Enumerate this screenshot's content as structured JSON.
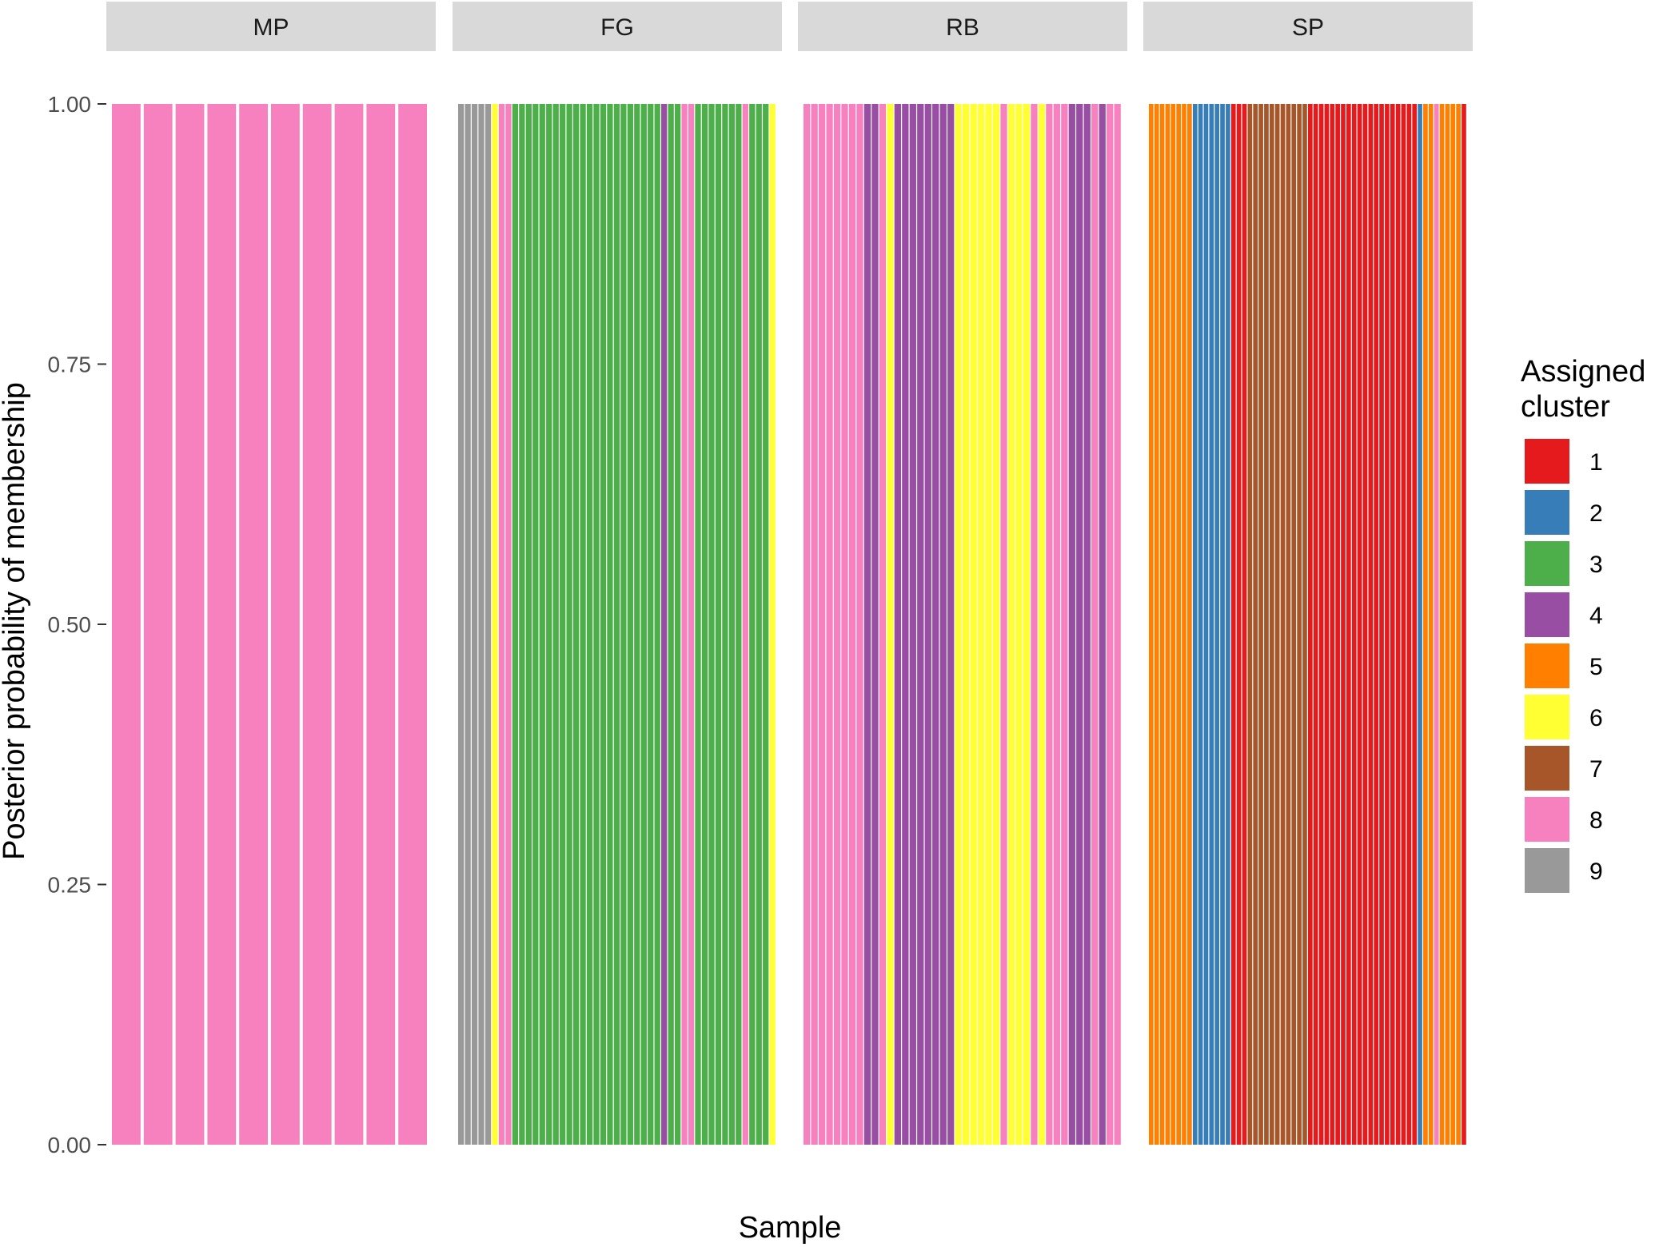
{
  "chart_data": {
    "type": "bar",
    "stacked": true,
    "ylabel": "Posterior probability of membership",
    "xlabel": "Sample",
    "ylim": [
      0,
      1
    ],
    "yticks": [
      "0.00",
      "0.25",
      "0.50",
      "0.75",
      "1.00"
    ],
    "grid": false,
    "legend": {
      "title": "Assigned cluster",
      "title_lines": [
        "Assigned",
        "cluster"
      ],
      "placement": "right",
      "entries": [
        {
          "label": "1",
          "color": "#E41A1C"
        },
        {
          "label": "2",
          "color": "#377EB8"
        },
        {
          "label": "3",
          "color": "#4DAF4A"
        },
        {
          "label": "4",
          "color": "#984EA3"
        },
        {
          "label": "5",
          "color": "#FF7F00"
        },
        {
          "label": "6",
          "color": "#FFFF33"
        },
        {
          "label": "7",
          "color": "#A65628"
        },
        {
          "label": "8",
          "color": "#F781BF"
        },
        {
          "label": "9",
          "color": "#999999"
        }
      ]
    },
    "facets": [
      {
        "name": "MP",
        "sample_clusters": [
          8,
          8,
          8,
          8,
          8,
          8,
          8,
          8,
          8,
          8
        ]
      },
      {
        "name": "FG",
        "sample_clusters": [
          9,
          9,
          9,
          9,
          9,
          6,
          8,
          8,
          3,
          3,
          3,
          3,
          3,
          3,
          3,
          3,
          3,
          3,
          3,
          3,
          3,
          3,
          3,
          3,
          3,
          3,
          3,
          3,
          3,
          3,
          4,
          3,
          3,
          8,
          8,
          3,
          3,
          3,
          3,
          3,
          3,
          3,
          8,
          3,
          3,
          3,
          6
        ]
      },
      {
        "name": "RB",
        "sample_clusters": [
          8,
          8,
          8,
          8,
          8,
          8,
          8,
          8,
          4,
          4,
          8,
          6,
          4,
          4,
          4,
          4,
          4,
          4,
          4,
          4,
          6,
          6,
          6,
          6,
          6,
          6,
          8,
          6,
          6,
          6,
          8,
          6,
          8,
          8,
          8,
          4,
          4,
          4,
          8,
          4,
          8,
          8
        ]
      },
      {
        "name": "SP",
        "sample_clusters": [
          5,
          5,
          5,
          5,
          5,
          5,
          5,
          5,
          2,
          2,
          2,
          2,
          2,
          2,
          2,
          1,
          1,
          1,
          7,
          7,
          7,
          7,
          7,
          7,
          7,
          7,
          7,
          7,
          7,
          1,
          1,
          1,
          1,
          1,
          1,
          1,
          1,
          1,
          1,
          1,
          1,
          1,
          1,
          1,
          1,
          1,
          1,
          1,
          1,
          2,
          5,
          5,
          8,
          5,
          5,
          5,
          5,
          1
        ]
      }
    ]
  }
}
